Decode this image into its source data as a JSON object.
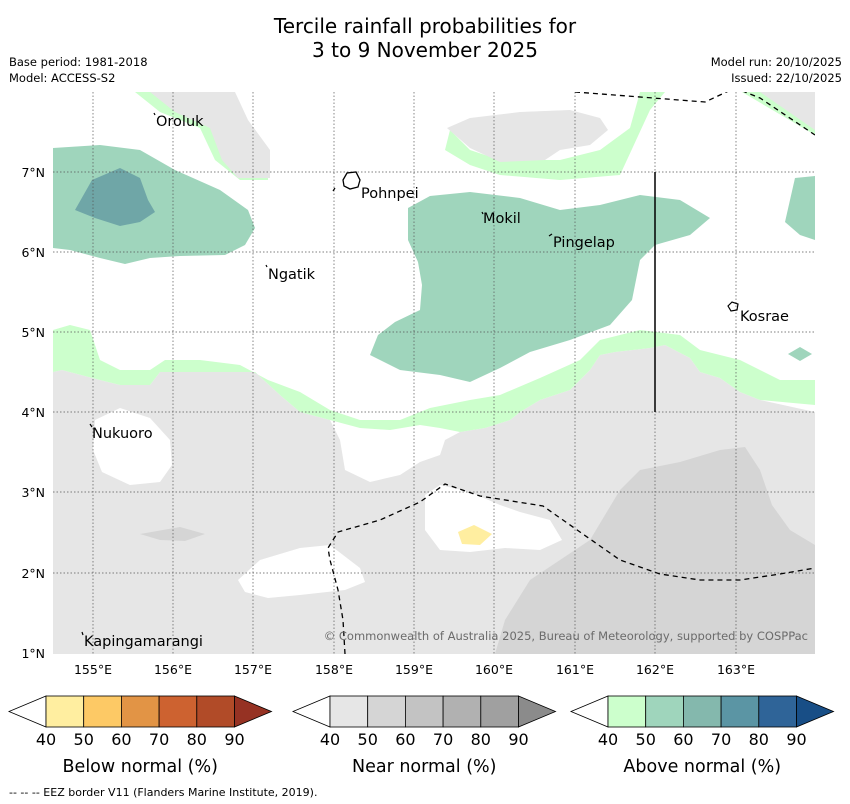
{
  "title": {
    "line1": "Tercile rainfall probabilities for",
    "line2": "3 to 9 November 2025"
  },
  "meta": {
    "base_period": "Base period: 1981-2018",
    "model": "Model: ACCESS-S2",
    "model_run": "Model run: 20/10/2025",
    "issued": "Issued: 22/10/2025"
  },
  "map": {
    "copyright": "© Commonwealth of Australia 2025, Bureau of Meteorology, supported by COSPPac",
    "islands": [
      "Oroluk",
      "Pohnpei",
      "Mokil",
      "Pingelap",
      "Ngatik",
      "Kosrae",
      "Nukuoro",
      "Kapingamarangi"
    ],
    "lat_ticks": [
      "7°N",
      "6°N",
      "5°N",
      "4°N",
      "3°N",
      "2°N",
      "1°N"
    ],
    "lon_ticks": [
      "155°E",
      "156°E",
      "157°E",
      "158°E",
      "159°E",
      "160°E",
      "161°E",
      "162°E",
      "163°E"
    ]
  },
  "legend": {
    "colorbars": [
      {
        "title": "Below normal (%)",
        "ticks": [
          "40",
          "50",
          "60",
          "70",
          "80",
          "90"
        ],
        "colors": [
          "#ffffff",
          "#ffeea0",
          "#fdc965",
          "#e29445",
          "#cd6230",
          "#b14b28",
          "#963223"
        ]
      },
      {
        "title": "Near normal (%)",
        "ticks": [
          "40",
          "50",
          "60",
          "70",
          "80",
          "90"
        ],
        "colors": [
          "#ffffff",
          "#e6e6e6",
          "#d5d5d5",
          "#c3c3c3",
          "#b1b1b1",
          "#a0a0a0",
          "#8b8b8b"
        ]
      },
      {
        "title": "Above normal (%)",
        "ticks": [
          "40",
          "50",
          "60",
          "70",
          "80",
          "90"
        ],
        "colors": [
          "#ffffff",
          "#ccffcc",
          "#9fd5bc",
          "#84b8ad",
          "#5b95a4",
          "#2f6498",
          "#184e86"
        ]
      }
    ]
  },
  "footnote": "--  --  -- EEZ border V11 (Flanders Marine Institute, 2019)."
}
